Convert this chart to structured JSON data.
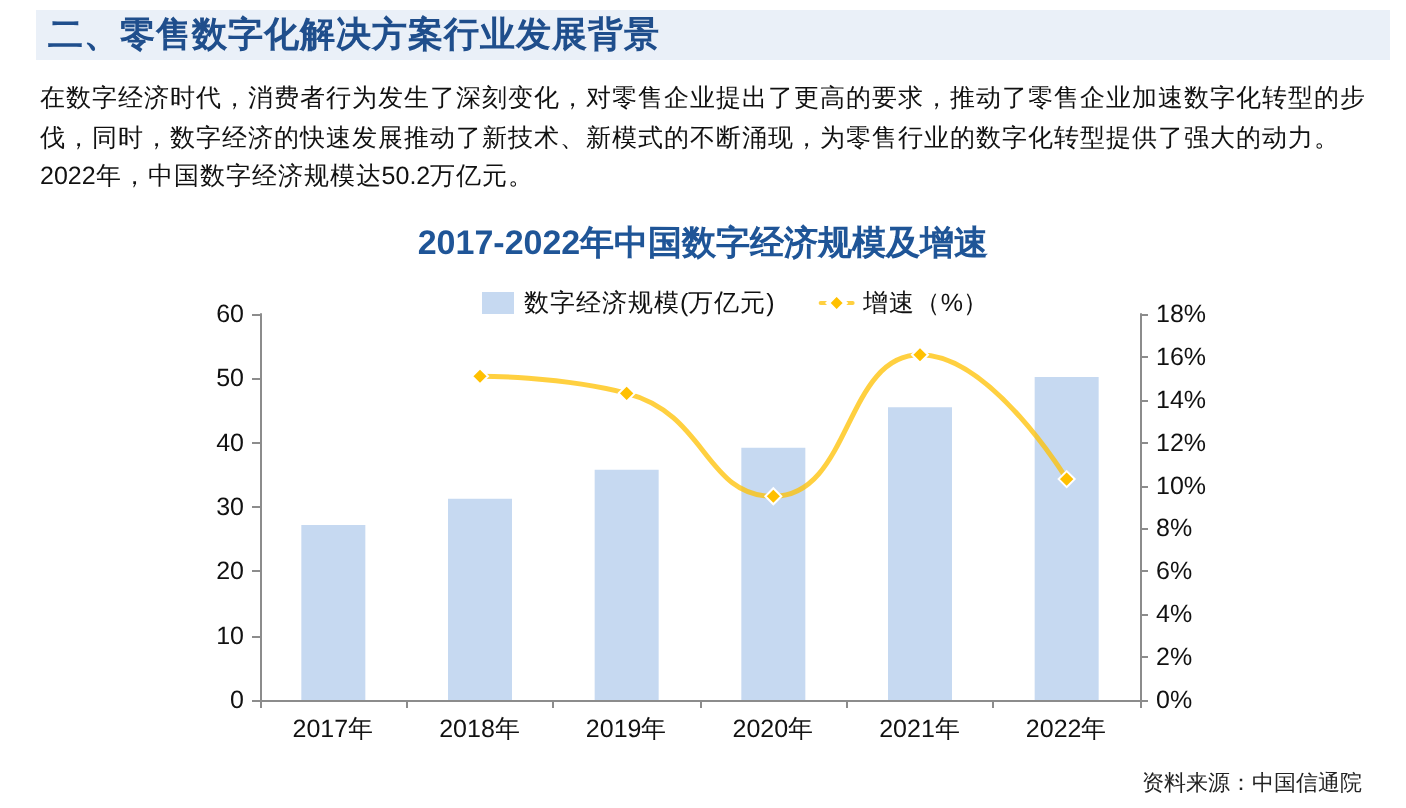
{
  "chart_data": {
    "type": "bar",
    "title": "2017-2022年中国数字经济规模及增速",
    "annotations": [
      "二、零售数字化解决方案行业发展背景",
      "在数字经济时代，消费者行为发生了深刻变化，对零售企业提出了更高的要求，推动了零售企业加速数字化转型的步伐，同时，数字经济的快速发展推动了新技术、新模式的不断涌现，为零售行业的数字化转型提供了强大的动力。2022年，中国数字经济规模达50.2万亿元。",
      "资料来源：中国信通院"
    ],
    "categories": [
      "2017年",
      "2018年",
      "2019年",
      "2020年",
      "2021年",
      "2022年"
    ],
    "series": [
      {
        "name": "数字经济规模(万亿元)",
        "color": "#c6d9f1",
        "values": [
          27.2,
          31.3,
          35.8,
          39.2,
          45.5,
          50.2
        ]
      },
      {
        "name": "增速（%）",
        "type": "line",
        "axis": "y2",
        "color": "#ffc000",
        "values": [
          null,
          15.1,
          14.3,
          9.5,
          16.1,
          10.3
        ]
      }
    ],
    "ylim": [
      0,
      60
    ],
    "yticks": [
      0,
      10,
      20,
      30,
      40,
      50,
      60
    ],
    "y2lim": [
      0,
      18
    ],
    "y2ticks": [
      {
        "value": 0,
        "label": "0%"
      },
      {
        "value": 2,
        "label": "2%"
      },
      {
        "value": 4,
        "label": "4%"
      },
      {
        "value": 6,
        "label": "6%"
      },
      {
        "value": 8,
        "label": "8%"
      },
      {
        "value": 10,
        "label": "10%"
      },
      {
        "value": 12,
        "label": "12%"
      },
      {
        "value": 14,
        "label": "14%"
      },
      {
        "value": 16,
        "label": "16%"
      },
      {
        "value": 18,
        "label": "18%"
      }
    ],
    "marker": "diamond",
    "legend": "top"
  }
}
